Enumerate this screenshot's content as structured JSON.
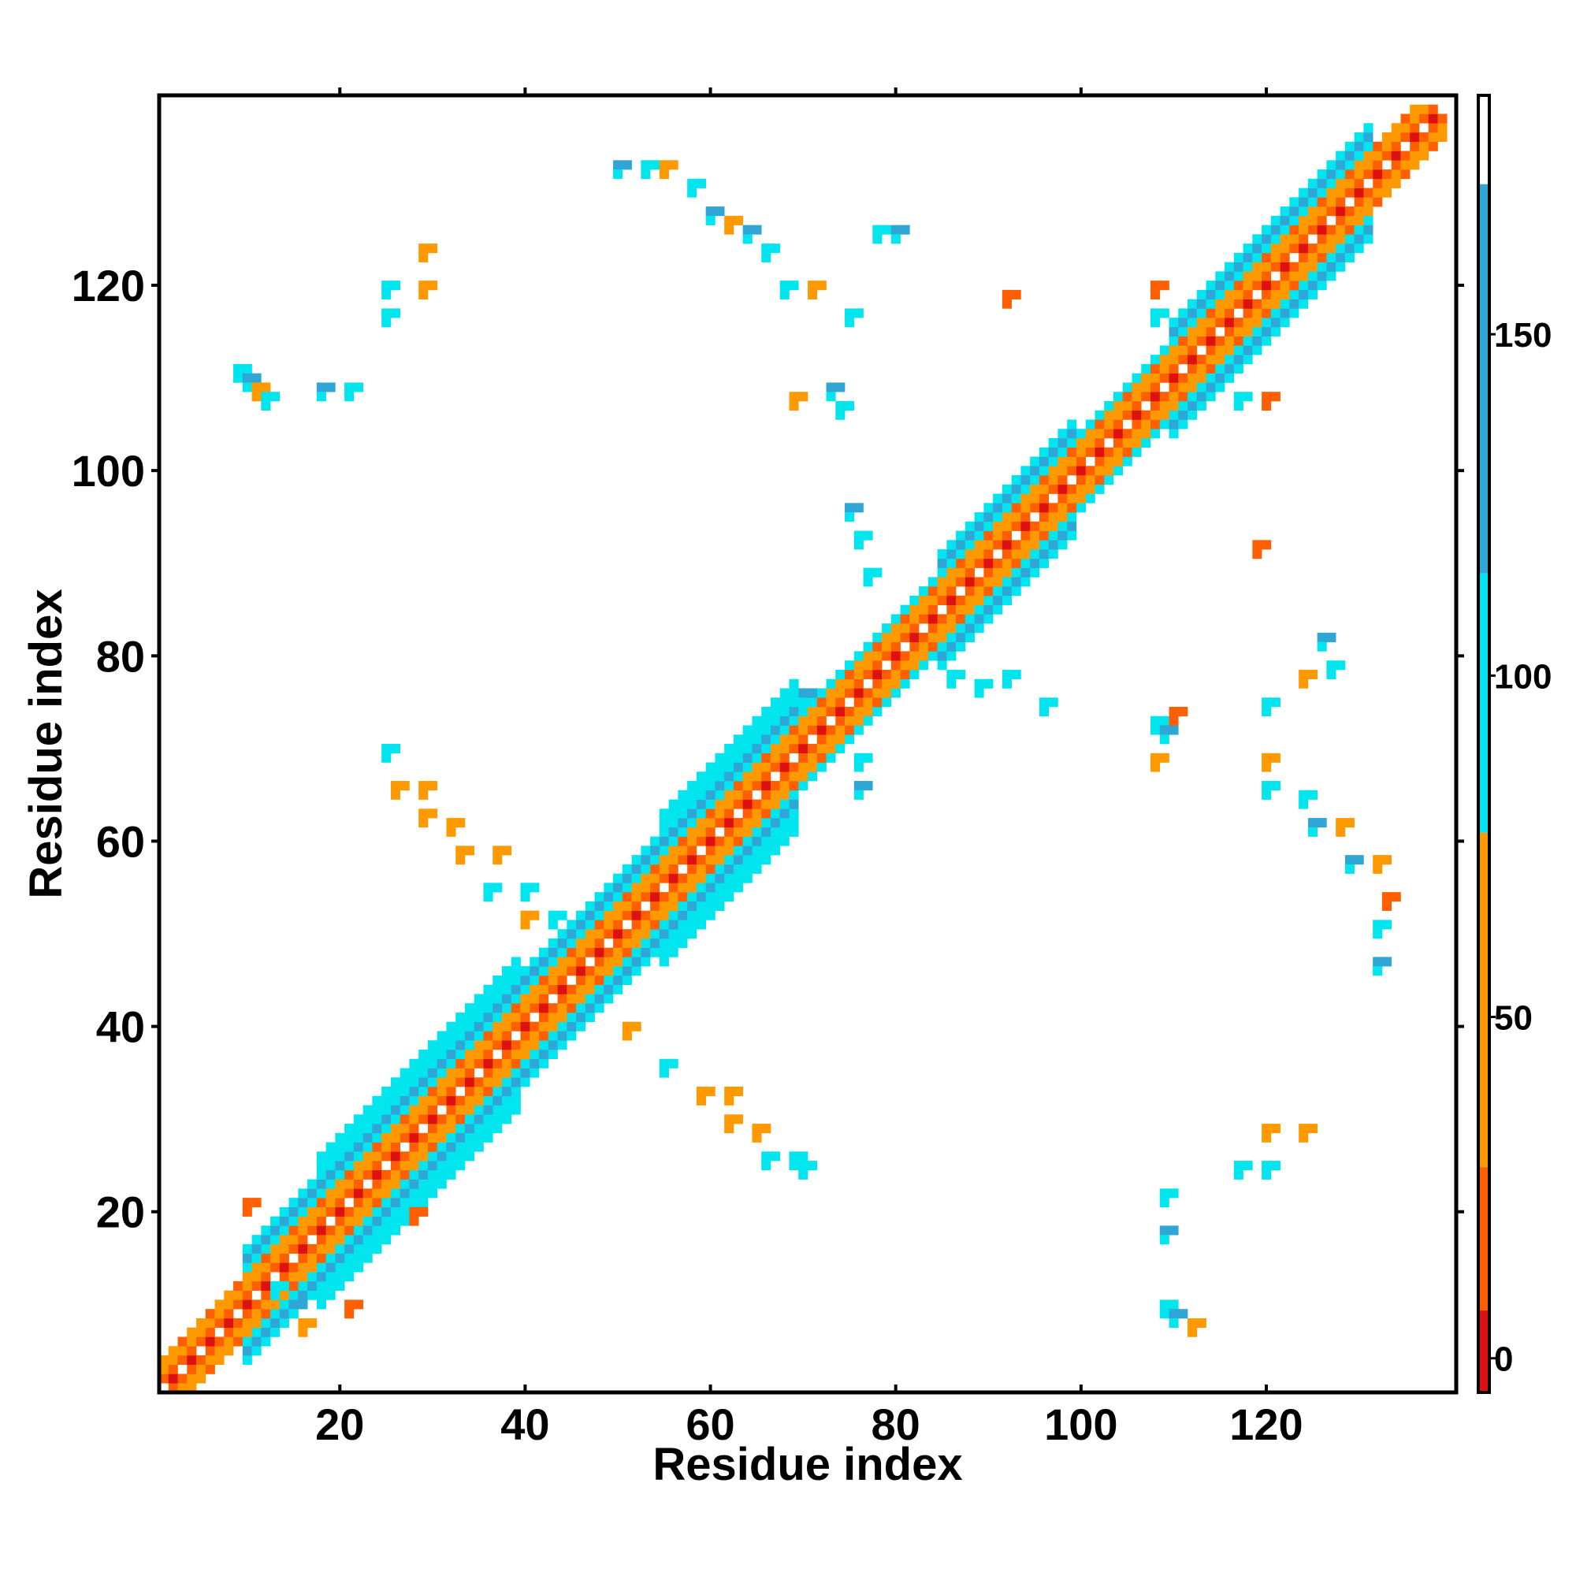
{
  "chart_data": {
    "type": "heatmap",
    "title": "",
    "xlabel": "Residue index",
    "ylabel": "Residue index",
    "xlim": [
      0.5,
      140.5
    ],
    "ylim": [
      0.5,
      140.5
    ],
    "x_ticks": [
      20,
      40,
      60,
      80,
      100,
      120
    ],
    "y_ticks": [
      20,
      40,
      60,
      80,
      100,
      120
    ],
    "grid": false,
    "legend": "none",
    "colorbar": {
      "position": "right",
      "range": [
        -5,
        185
      ],
      "ticks": [
        0,
        50,
        100,
        150
      ],
      "bands": [
        {
          "from": -5,
          "to": 7,
          "color": "#dd1111"
        },
        {
          "from": 7,
          "to": 28,
          "color": "#ff5f00"
        },
        {
          "from": 28,
          "to": 77,
          "color": "#ff9900"
        },
        {
          "from": 77,
          "to": 115,
          "color": "#00e5ee"
        },
        {
          "from": 115,
          "to": 172,
          "color": "#2fa6d6"
        },
        {
          "from": 172,
          "to": 185,
          "color": "#ffffff"
        }
      ]
    },
    "palette": {
      "red": "#dd1111",
      "orange_red": "#ff5f00",
      "orange": "#ff9900",
      "cyan": "#00e5ee",
      "blue": "#2fa6d6"
    },
    "diagonal_band_cells": [
      {
        "x": 1,
        "y": 1,
        "value": 0
      },
      {
        "x": 2,
        "y": 2,
        "value": 0
      },
      {
        "x": 20,
        "y": 20,
        "value": 0
      },
      {
        "x": 60,
        "y": 60,
        "value": 0
      },
      {
        "x": 100,
        "y": 100,
        "value": 0
      },
      {
        "x": 139,
        "y": 139,
        "value": 0
      }
    ],
    "off_diagonal_cells": [
      {
        "x": 9,
        "y": 111,
        "value": 95
      },
      {
        "x": 10,
        "y": 110,
        "value": 150
      },
      {
        "x": 11,
        "y": 109,
        "value": 40
      },
      {
        "x": 12,
        "y": 108,
        "value": 95
      },
      {
        "x": 18,
        "y": 109,
        "value": 150
      },
      {
        "x": 21,
        "y": 109,
        "value": 95
      },
      {
        "x": 25,
        "y": 120,
        "value": 95
      },
      {
        "x": 25,
        "y": 117,
        "value": 95
      },
      {
        "x": 29,
        "y": 124,
        "value": 40
      },
      {
        "x": 29,
        "y": 120,
        "value": 40
      },
      {
        "x": 50,
        "y": 133,
        "value": 150
      },
      {
        "x": 53,
        "y": 133,
        "value": 95
      },
      {
        "x": 55,
        "y": 133,
        "value": 40
      },
      {
        "x": 58,
        "y": 131,
        "value": 95
      },
      {
        "x": 60,
        "y": 128,
        "value": 150
      },
      {
        "x": 62,
        "y": 127,
        "value": 40
      },
      {
        "x": 64,
        "y": 126,
        "value": 150
      },
      {
        "x": 66,
        "y": 124,
        "value": 95
      },
      {
        "x": 68,
        "y": 120,
        "value": 95
      },
      {
        "x": 71,
        "y": 120,
        "value": 40
      },
      {
        "x": 75,
        "y": 117,
        "value": 95
      },
      {
        "x": 78,
        "y": 126,
        "value": 95
      },
      {
        "x": 80,
        "y": 126,
        "value": 150
      },
      {
        "x": 92,
        "y": 119,
        "value": 20
      },
      {
        "x": 73,
        "y": 109,
        "value": 150
      },
      {
        "x": 74,
        "y": 107,
        "value": 95
      },
      {
        "x": 69,
        "y": 108,
        "value": 40
      },
      {
        "x": 75,
        "y": 96,
        "value": 150
      },
      {
        "x": 76,
        "y": 93,
        "value": 95
      },
      {
        "x": 77,
        "y": 89,
        "value": 95
      },
      {
        "x": 119,
        "y": 92,
        "value": 20
      },
      {
        "x": 108,
        "y": 120,
        "value": 20
      },
      {
        "x": 108,
        "y": 117,
        "value": 95
      },
      {
        "x": 120,
        "y": 108,
        "value": 20
      },
      {
        "x": 117,
        "y": 108,
        "value": 95
      },
      {
        "x": 108,
        "y": 73,
        "value": 95
      },
      {
        "x": 109,
        "y": 72,
        "value": 150
      },
      {
        "x": 110,
        "y": 74,
        "value": 20
      },
      {
        "x": 108,
        "y": 69,
        "value": 40
      },
      {
        "x": 126,
        "y": 82,
        "value": 150
      },
      {
        "x": 127,
        "y": 79,
        "value": 95
      },
      {
        "x": 124,
        "y": 78,
        "value": 40
      },
      {
        "x": 120,
        "y": 75,
        "value": 95
      },
      {
        "x": 120,
        "y": 69,
        "value": 40
      },
      {
        "x": 120,
        "y": 66,
        "value": 95
      },
      {
        "x": 124,
        "y": 65,
        "value": 95
      },
      {
        "x": 125,
        "y": 62,
        "value": 150
      },
      {
        "x": 128,
        "y": 62,
        "value": 40
      },
      {
        "x": 129,
        "y": 58,
        "value": 150
      },
      {
        "x": 132,
        "y": 58,
        "value": 40
      },
      {
        "x": 133,
        "y": 54,
        "value": 20
      },
      {
        "x": 132,
        "y": 51,
        "value": 95
      },
      {
        "x": 132,
        "y": 47,
        "value": 150
      },
      {
        "x": 120,
        "y": 29,
        "value": 40
      },
      {
        "x": 124,
        "y": 29,
        "value": 40
      },
      {
        "x": 117,
        "y": 25,
        "value": 95
      },
      {
        "x": 120,
        "y": 25,
        "value": 95
      },
      {
        "x": 109,
        "y": 22,
        "value": 95
      },
      {
        "x": 109,
        "y": 18,
        "value": 150
      },
      {
        "x": 109,
        "y": 10,
        "value": 95
      },
      {
        "x": 110,
        "y": 9,
        "value": 150
      },
      {
        "x": 112,
        "y": 8,
        "value": 40
      },
      {
        "x": 16,
        "y": 8,
        "value": 40
      },
      {
        "x": 15,
        "y": 10,
        "value": 150
      },
      {
        "x": 13,
        "y": 12,
        "value": 95
      },
      {
        "x": 21,
        "y": 10,
        "value": 20
      },
      {
        "x": 10,
        "y": 21,
        "value": 20
      },
      {
        "x": 28,
        "y": 20,
        "value": 20
      },
      {
        "x": 25,
        "y": 70,
        "value": 95
      },
      {
        "x": 26,
        "y": 66,
        "value": 40
      },
      {
        "x": 29,
        "y": 66,
        "value": 40
      },
      {
        "x": 29,
        "y": 63,
        "value": 40
      },
      {
        "x": 32,
        "y": 62,
        "value": 40
      },
      {
        "x": 33,
        "y": 59,
        "value": 40
      },
      {
        "x": 37,
        "y": 59,
        "value": 40
      },
      {
        "x": 36,
        "y": 55,
        "value": 95
      },
      {
        "x": 40,
        "y": 55,
        "value": 95
      },
      {
        "x": 40,
        "y": 52,
        "value": 40
      },
      {
        "x": 43,
        "y": 52,
        "value": 95
      },
      {
        "x": 51,
        "y": 40,
        "value": 40
      },
      {
        "x": 55,
        "y": 36,
        "value": 95
      },
      {
        "x": 59,
        "y": 33,
        "value": 40
      },
      {
        "x": 62,
        "y": 33,
        "value": 40
      },
      {
        "x": 62,
        "y": 30,
        "value": 40
      },
      {
        "x": 65,
        "y": 29,
        "value": 40
      },
      {
        "x": 66,
        "y": 26,
        "value": 95
      },
      {
        "x": 69,
        "y": 26,
        "value": 95
      },
      {
        "x": 70,
        "y": 25,
        "value": 95
      },
      {
        "x": 76,
        "y": 69,
        "value": 95
      },
      {
        "x": 76,
        "y": 66,
        "value": 150
      },
      {
        "x": 70,
        "y": 76,
        "value": 150
      },
      {
        "x": 86,
        "y": 78,
        "value": 95
      },
      {
        "x": 89,
        "y": 77,
        "value": 95
      },
      {
        "x": 92,
        "y": 78,
        "value": 95
      },
      {
        "x": 96,
        "y": 75,
        "value": 95
      }
    ],
    "diagonal_pattern": {
      "description": "Contact band along the main diagonal with checkerboard of red/orange near diagonal and cyan/blue further from diagonal",
      "half_width_by_residue": [
        {
          "from": 1,
          "to": 10,
          "width": 3
        },
        {
          "from": 10,
          "to": 18,
          "width": 6
        },
        {
          "from": 18,
          "to": 40,
          "width": 8
        },
        {
          "from": 40,
          "to": 55,
          "width": 6
        },
        {
          "from": 55,
          "to": 70,
          "width": 8
        },
        {
          "from": 70,
          "to": 85,
          "width": 4
        },
        {
          "from": 85,
          "to": 100,
          "width": 7
        },
        {
          "from": 100,
          "to": 110,
          "width": 4
        },
        {
          "from": 110,
          "to": 132,
          "width": 7
        },
        {
          "from": 132,
          "to": 140,
          "width": 3
        }
      ]
    }
  }
}
